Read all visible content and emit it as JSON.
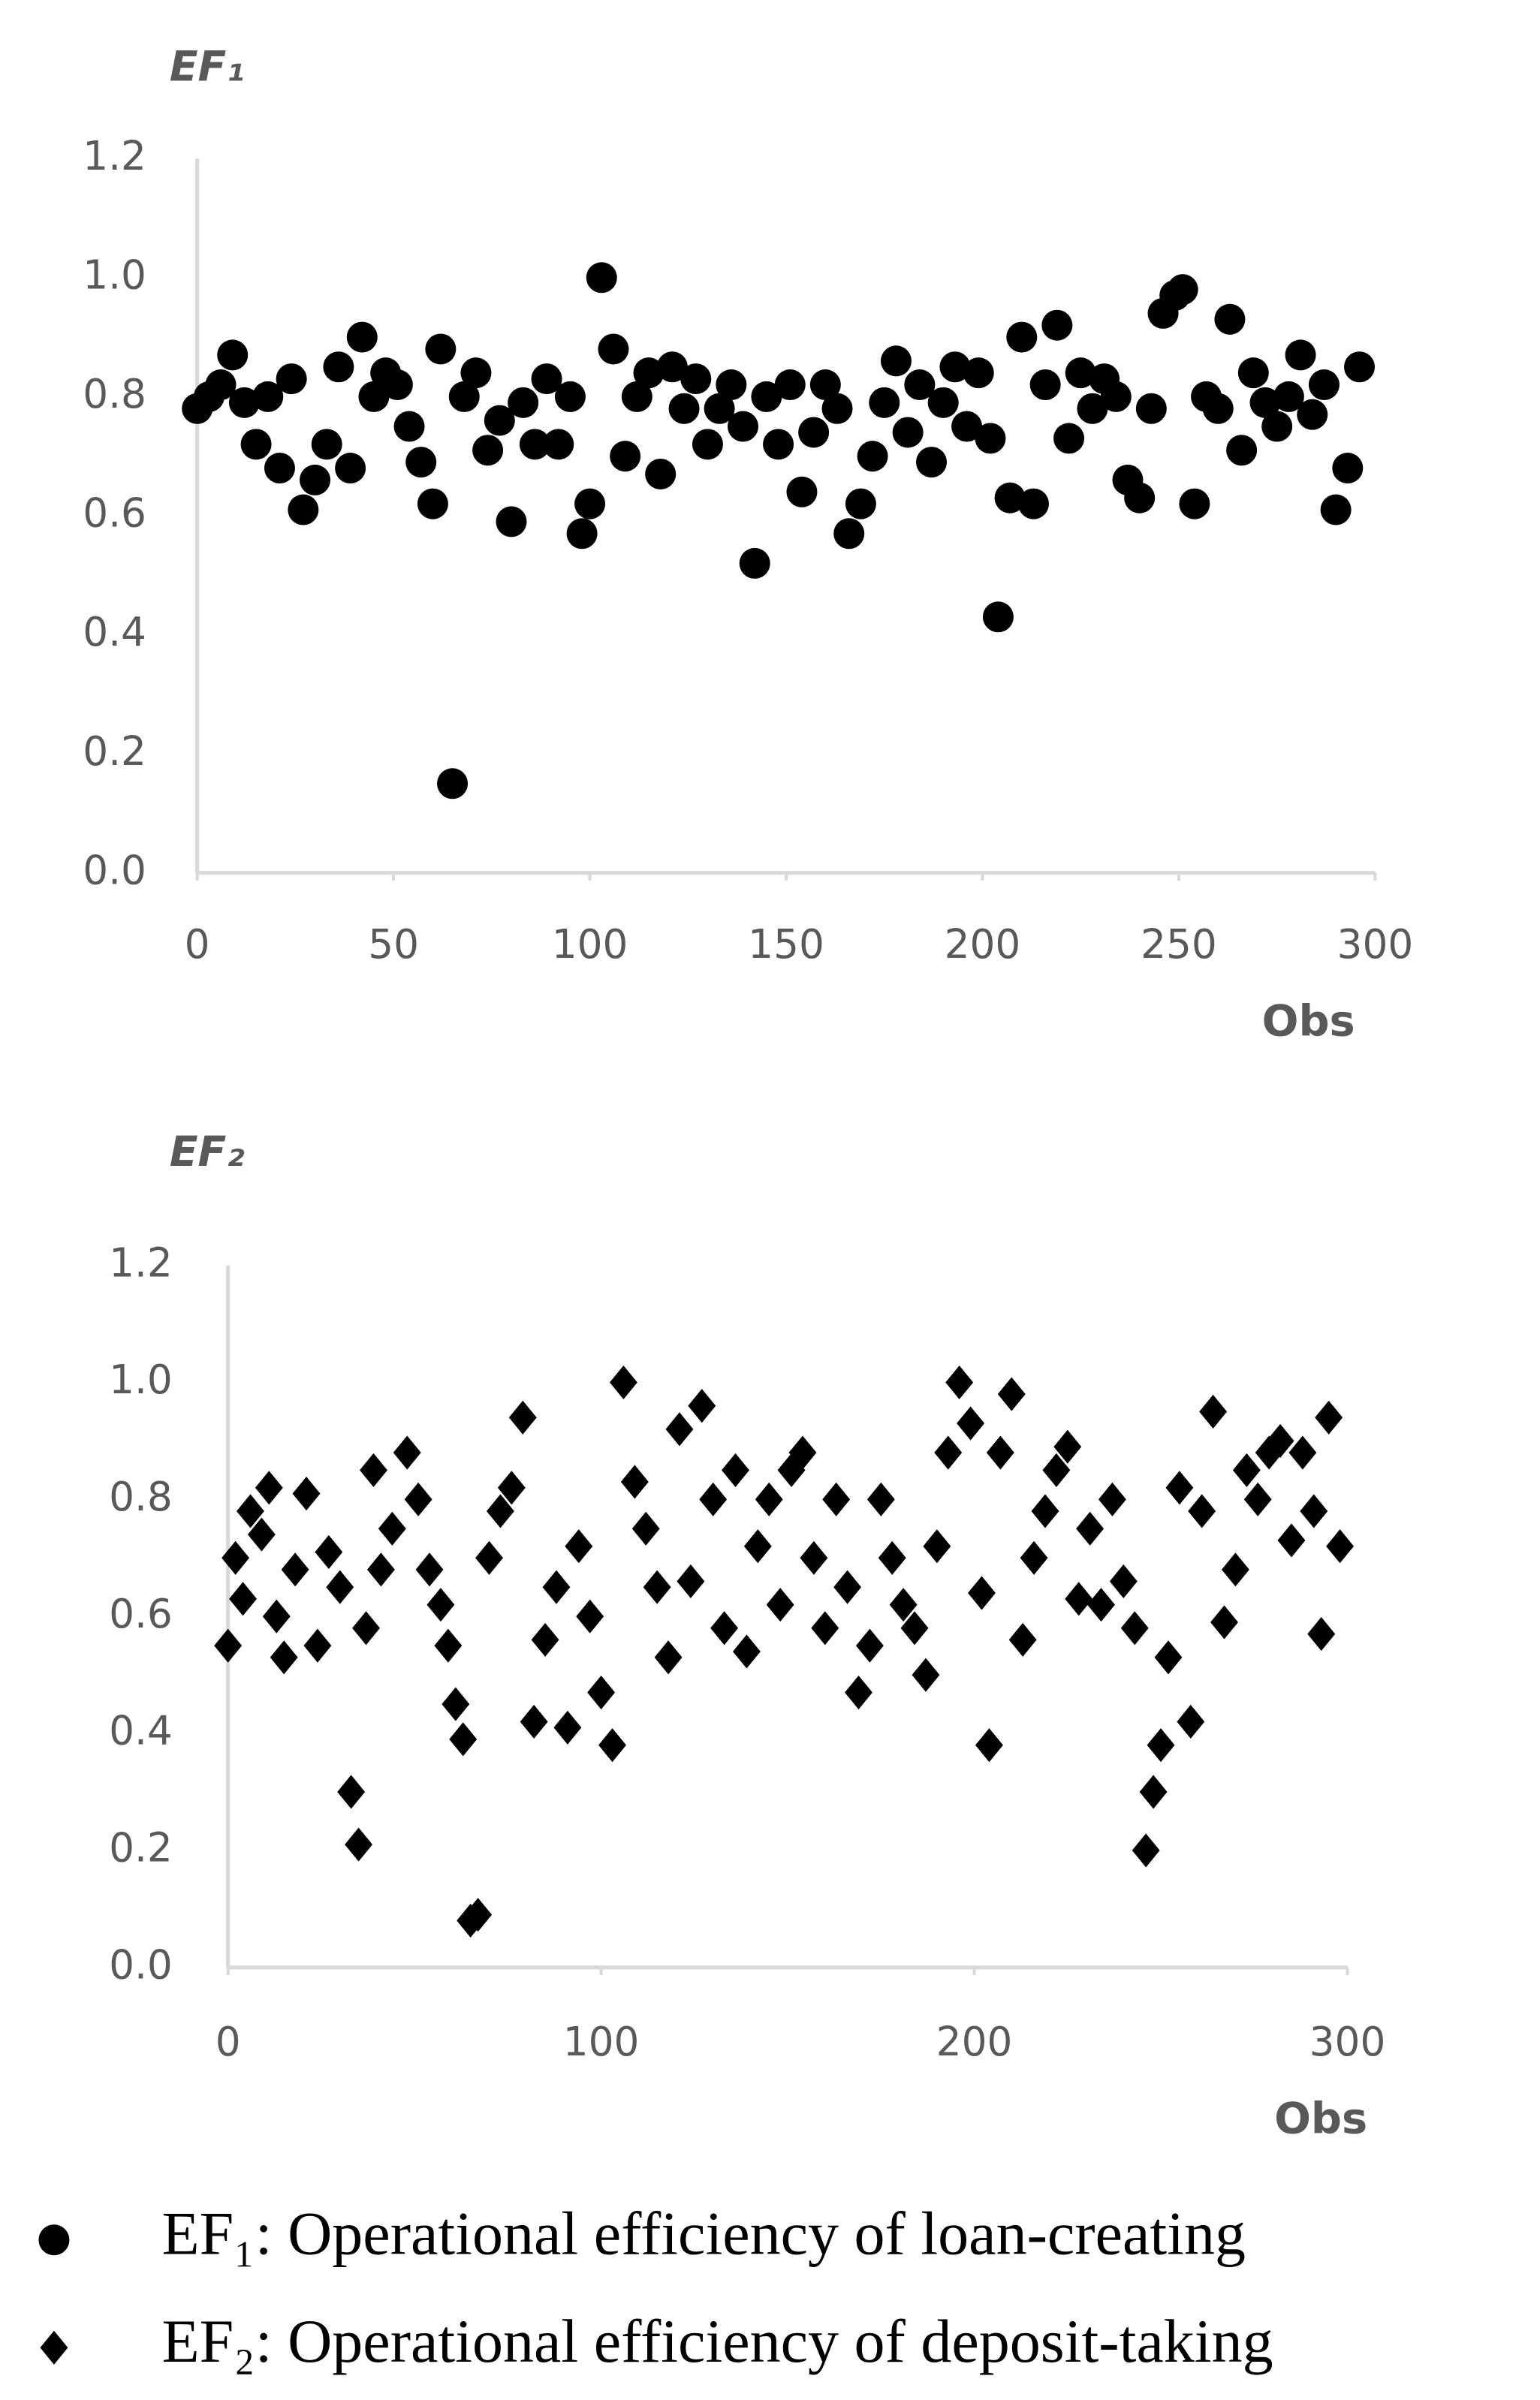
{
  "chart_data": [
    {
      "type": "scatter",
      "title": "EF₁",
      "x_label": "Obs",
      "xlim": [
        0,
        300
      ],
      "xticks": [
        0,
        50,
        100,
        150,
        200,
        250,
        300
      ],
      "ylim": [
        0,
        1.2
      ],
      "yticks": [
        {
          "value": 0,
          "label": "0.0"
        },
        0.2,
        0.4,
        0.6,
        0.8,
        {
          "value": 1,
          "label": "1.0"
        },
        1.2
      ],
      "grid": false,
      "series": [
        {
          "name": "EF₁: Operational efficiency of loan-creating",
          "color": "#000000",
          "marker": "circle",
          "x": [
            0,
            3,
            6,
            9,
            12,
            15,
            18,
            21,
            24,
            27,
            30,
            33,
            36,
            39,
            42,
            45,
            48,
            51,
            54,
            57,
            60,
            62,
            65,
            68,
            71,
            74,
            77,
            80,
            83,
            86,
            89,
            92,
            95,
            98,
            100,
            103,
            106,
            109,
            112,
            115,
            118,
            121,
            124,
            127,
            130,
            133,
            136,
            139,
            142,
            145,
            148,
            151,
            154,
            157,
            160,
            163,
            166,
            169,
            172,
            175,
            178,
            181,
            184,
            187,
            190,
            193,
            196,
            199,
            202,
            204,
            207,
            210,
            213,
            216,
            219,
            222,
            225,
            228,
            231,
            234,
            237,
            240,
            243,
            246,
            249,
            251,
            254,
            257,
            260,
            263,
            266,
            269,
            272,
            275,
            278,
            281,
            284,
            287,
            290,
            293,
            296
          ],
          "values": [
            0.78,
            0.8,
            0.82,
            0.87,
            0.79,
            0.72,
            0.8,
            0.68,
            0.83,
            0.61,
            0.66,
            0.72,
            0.85,
            0.68,
            0.9,
            0.8,
            0.84,
            0.82,
            0.75,
            0.69,
            0.62,
            0.88,
            0.15,
            0.8,
            0.84,
            0.71,
            0.76,
            0.59,
            0.79,
            0.72,
            0.83,
            0.72,
            0.8,
            0.57,
            0.62,
            1.0,
            0.88,
            0.7,
            0.8,
            0.84,
            0.67,
            0.85,
            0.78,
            0.83,
            0.72,
            0.78,
            0.82,
            0.75,
            0.52,
            0.8,
            0.72,
            0.82,
            0.64,
            0.74,
            0.82,
            0.78,
            0.57,
            0.62,
            0.7,
            0.79,
            0.86,
            0.74,
            0.82,
            0.69,
            0.79,
            0.85,
            0.75,
            0.84,
            0.73,
            0.43,
            0.63,
            0.9,
            0.62,
            0.82,
            0.92,
            0.73,
            0.84,
            0.78,
            0.83,
            0.8,
            0.66,
            0.63,
            0.78,
            0.94,
            0.97,
            0.98,
            0.62,
            0.8,
            0.78,
            0.93,
            0.71,
            0.84,
            0.79,
            0.75,
            0.8,
            0.87,
            0.77,
            0.82,
            0.61,
            0.68,
            0.85
          ]
        }
      ]
    },
    {
      "type": "scatter",
      "title": "EF₂",
      "x_label": "Obs",
      "xlim": [
        0,
        300
      ],
      "xticks": [
        0,
        100,
        200,
        300
      ],
      "ylim": [
        0,
        1.2
      ],
      "yticks": [
        {
          "value": 0,
          "label": "0.0"
        },
        0.2,
        0.4,
        0.6,
        0.8,
        {
          "value": 1,
          "label": "1.0"
        },
        1.2
      ],
      "grid": false,
      "series": [
        {
          "name": "EF₂: Operational efficiency of deposit-taking",
          "color": "#000000",
          "marker": "diamond",
          "x": [
            0,
            2,
            4,
            6,
            9,
            11,
            13,
            15,
            18,
            21,
            24,
            27,
            30,
            33,
            35,
            37,
            39,
            41,
            44,
            48,
            51,
            54,
            57,
            59,
            61,
            63,
            65,
            67,
            70,
            73,
            76,
            79,
            82,
            85,
            88,
            91,
            94,
            97,
            100,
            103,
            106,
            109,
            112,
            115,
            118,
            121,
            124,
            127,
            130,
            133,
            136,
            139,
            142,
            145,
            148,
            151,
            154,
            157,
            160,
            163,
            166,
            169,
            172,
            175,
            178,
            181,
            184,
            187,
            190,
            193,
            196,
            199,
            202,
            204,
            207,
            210,
            213,
            216,
            219,
            222,
            225,
            228,
            231,
            234,
            237,
            240,
            243,
            246,
            248,
            250,
            252,
            255,
            258,
            261,
            264,
            267,
            270,
            273,
            276,
            279,
            282,
            285,
            288,
            291,
            293,
            295,
            298
          ],
          "values": [
            0.55,
            0.7,
            0.63,
            0.78,
            0.74,
            0.82,
            0.6,
            0.53,
            0.68,
            0.81,
            0.55,
            0.71,
            0.65,
            0.3,
            0.21,
            0.58,
            0.85,
            0.68,
            0.75,
            0.88,
            0.8,
            0.68,
            0.62,
            0.55,
            0.45,
            0.39,
            0.08,
            0.09,
            0.7,
            0.78,
            0.82,
            0.94,
            0.42,
            0.56,
            0.65,
            0.41,
            0.72,
            0.6,
            0.47,
            0.38,
            1.0,
            0.83,
            0.75,
            0.65,
            0.53,
            0.92,
            0.66,
            0.96,
            0.8,
            0.58,
            0.85,
            0.54,
            0.72,
            0.8,
            0.62,
            0.85,
            0.88,
            0.7,
            0.58,
            0.8,
            0.65,
            0.47,
            0.55,
            0.8,
            0.7,
            0.62,
            0.58,
            0.5,
            0.72,
            0.88,
            1.0,
            0.93,
            0.64,
            0.38,
            0.88,
            0.98,
            0.56,
            0.7,
            0.78,
            0.85,
            0.89,
            0.63,
            0.75,
            0.62,
            0.8,
            0.66,
            0.58,
            0.2,
            0.3,
            0.38,
            0.53,
            0.82,
            0.42,
            0.78,
            0.95,
            0.59,
            0.68,
            0.85,
            0.8,
            0.88,
            0.9,
            0.73,
            0.88,
            0.78,
            0.57,
            0.94,
            0.72
          ]
        }
      ]
    }
  ]
}
